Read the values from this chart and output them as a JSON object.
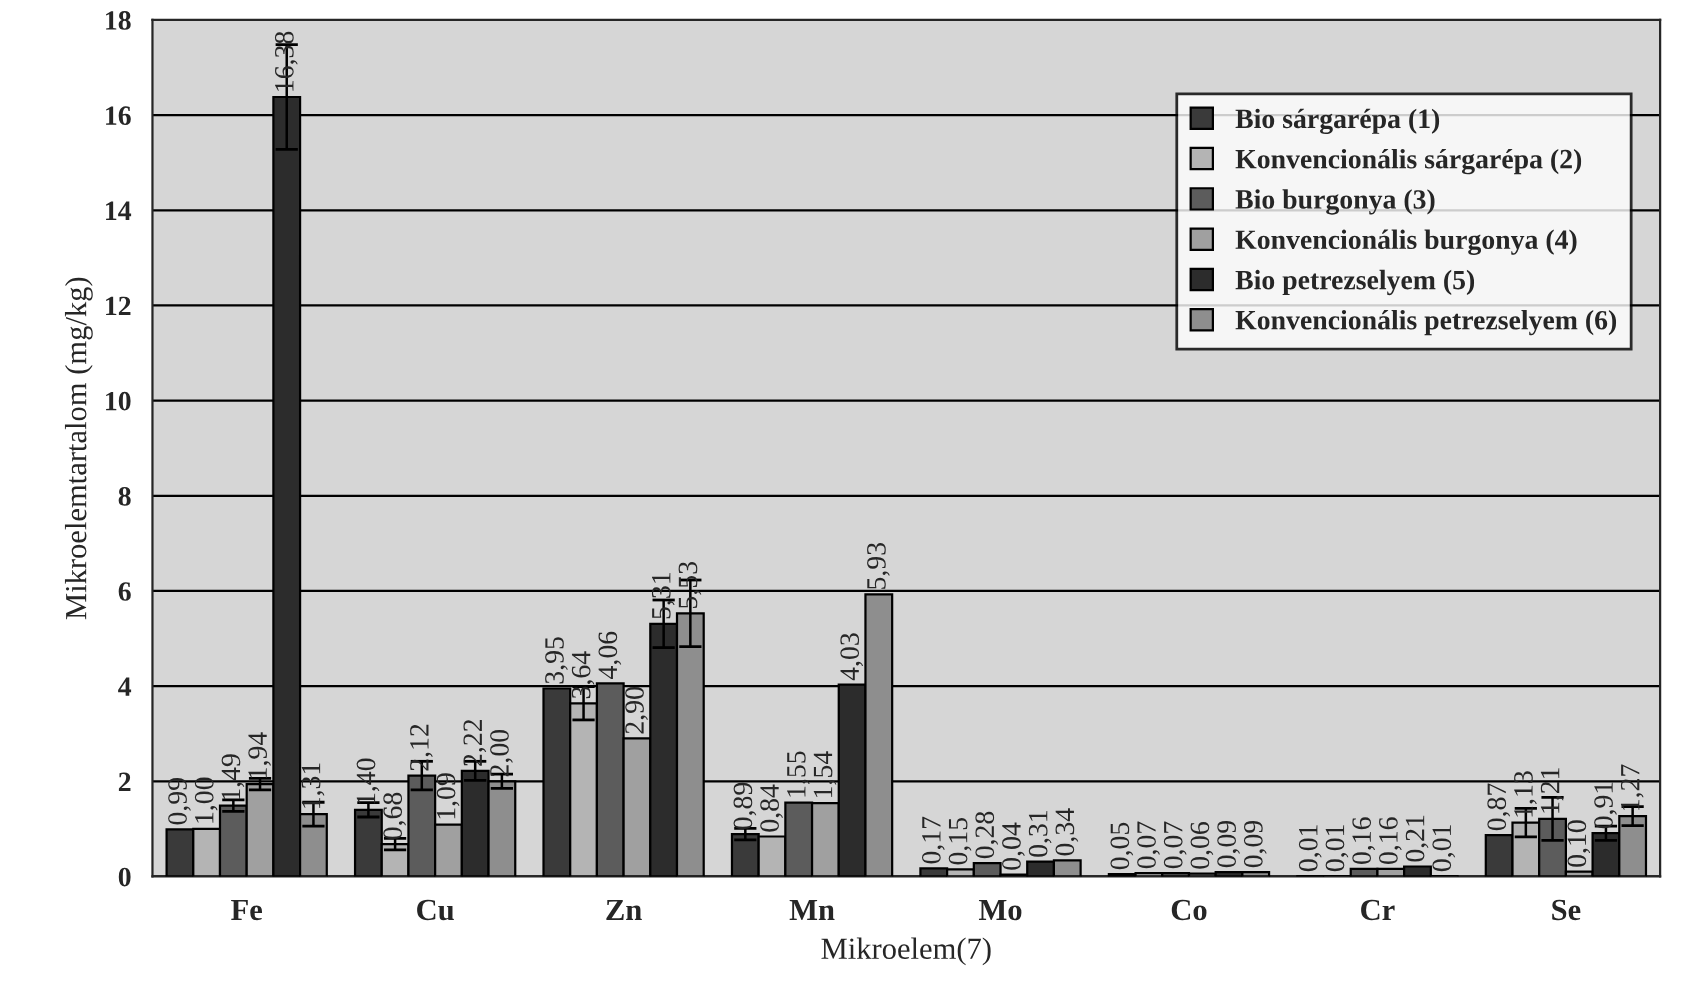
{
  "chart_data": {
    "type": "bar",
    "xlabel": "Mikroelem(7)",
    "ylabel": "Mikroelemtartalom (mg/kg)",
    "categories": [
      "Fe",
      "Cu",
      "Zn",
      "Mn",
      "Mo",
      "Co",
      "Cr",
      "Se"
    ],
    "series": [
      {
        "name": "Bio sárgarépa (1)",
        "color": "#3a3a3a",
        "values": [
          0.99,
          1.4,
          3.95,
          0.89,
          0.17,
          0.05,
          0.01,
          0.87
        ],
        "value_labels": [
          "0,99",
          "1,40",
          "3,95",
          "0,89",
          "0,17",
          "0,05",
          "0,01",
          "0,87"
        ],
        "errors": [
          null,
          0.15,
          null,
          0.12,
          null,
          null,
          null,
          null
        ]
      },
      {
        "name": "Konvencionális sárgarépa (2)",
        "color": "#b4b4b4",
        "values": [
          1.0,
          0.68,
          3.64,
          0.84,
          0.15,
          0.07,
          0.01,
          1.13
        ],
        "value_labels": [
          "1,00",
          "0,68",
          "3,64",
          "0,84",
          "0,15",
          "0,07",
          "0,01",
          "1,13"
        ],
        "errors": [
          null,
          0.12,
          0.35,
          null,
          null,
          null,
          null,
          0.3
        ]
      },
      {
        "name": "Bio burgonya (3)",
        "color": "#5c5c5c",
        "values": [
          1.49,
          2.12,
          4.06,
          1.55,
          0.28,
          0.07,
          0.16,
          1.21
        ],
        "value_labels": [
          "1,49",
          "2,12",
          "4,06",
          "1,55",
          "0,28",
          "0,07",
          "0,16",
          "1,21"
        ],
        "errors": [
          0.12,
          0.3,
          null,
          null,
          null,
          null,
          null,
          0.45
        ]
      },
      {
        "name": "Konvencionális burgonya (4)",
        "color": "#a0a0a0",
        "values": [
          1.94,
          1.09,
          2.9,
          1.54,
          0.04,
          0.06,
          0.16,
          0.1
        ],
        "value_labels": [
          "1,94",
          "1,09",
          "2,90",
          "1,54",
          "0,04",
          "0,06",
          "0,16",
          "0,10"
        ],
        "errors": [
          0.12,
          null,
          null,
          null,
          null,
          null,
          null,
          null
        ]
      },
      {
        "name": "Bio petrezselyem (5)",
        "color": "#2c2c2c",
        "values": [
          16.38,
          2.22,
          5.31,
          4.03,
          0.31,
          0.09,
          0.21,
          0.91
        ],
        "value_labels": [
          "16,38",
          "2,22",
          "5,31",
          "4,03",
          "0,31",
          "0,09",
          "0,21",
          "0,91"
        ],
        "errors": [
          1.1,
          0.2,
          0.5,
          null,
          null,
          null,
          null,
          0.15
        ]
      },
      {
        "name": "Konvencionális petrezselyem (6)",
        "color": "#8e8e8e",
        "values": [
          1.31,
          2.0,
          5.53,
          5.93,
          0.34,
          0.09,
          0.01,
          1.27
        ],
        "value_labels": [
          "1,31",
          "2,00",
          "5,53",
          "5,93",
          "0,34",
          "0,09",
          "0,01",
          "1,27"
        ],
        "errors": [
          0.25,
          0.15,
          0.7,
          null,
          null,
          null,
          null,
          0.2
        ]
      }
    ],
    "ylim": [
      0,
      18
    ],
    "yticks": [
      0,
      2,
      4,
      6,
      8,
      10,
      12,
      14,
      16,
      18
    ],
    "grid": "y",
    "legend": "top right"
  }
}
